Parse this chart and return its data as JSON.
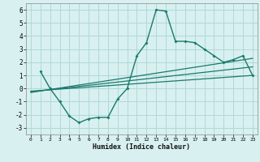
{
  "xlabel": "Humidex (Indice chaleur)",
  "background_color": "#d8f0f0",
  "grid_color": "#b0d8d8",
  "line_color": "#1a7a6a",
  "xlim": [
    -0.5,
    23.5
  ],
  "ylim": [
    -3.5,
    6.5
  ],
  "xticks": [
    0,
    1,
    2,
    3,
    4,
    5,
    6,
    7,
    8,
    9,
    10,
    11,
    12,
    13,
    14,
    15,
    16,
    17,
    18,
    19,
    20,
    21,
    22,
    23
  ],
  "yticks": [
    -3,
    -2,
    -1,
    0,
    1,
    2,
    3,
    4,
    5,
    6
  ],
  "curve1_x": [
    1,
    2,
    3,
    4,
    5,
    6,
    7,
    8,
    9,
    10,
    11,
    12,
    13,
    14,
    15,
    16,
    17,
    18,
    19,
    20,
    21,
    22,
    23
  ],
  "curve1_y": [
    1.3,
    0.0,
    -1.0,
    -2.1,
    -2.6,
    -2.3,
    -2.2,
    -2.2,
    -0.8,
    0.0,
    2.5,
    3.5,
    6.0,
    5.9,
    3.6,
    3.6,
    3.5,
    3.0,
    2.5,
    2.0,
    2.2,
    2.5,
    1.0
  ],
  "line1_x": [
    0,
    23
  ],
  "line1_y": [
    -0.2,
    1.0
  ],
  "line2_x": [
    0,
    23
  ],
  "line2_y": [
    -0.3,
    2.3
  ],
  "line3_x": [
    0,
    23
  ],
  "line3_y": [
    -0.25,
    1.65
  ]
}
